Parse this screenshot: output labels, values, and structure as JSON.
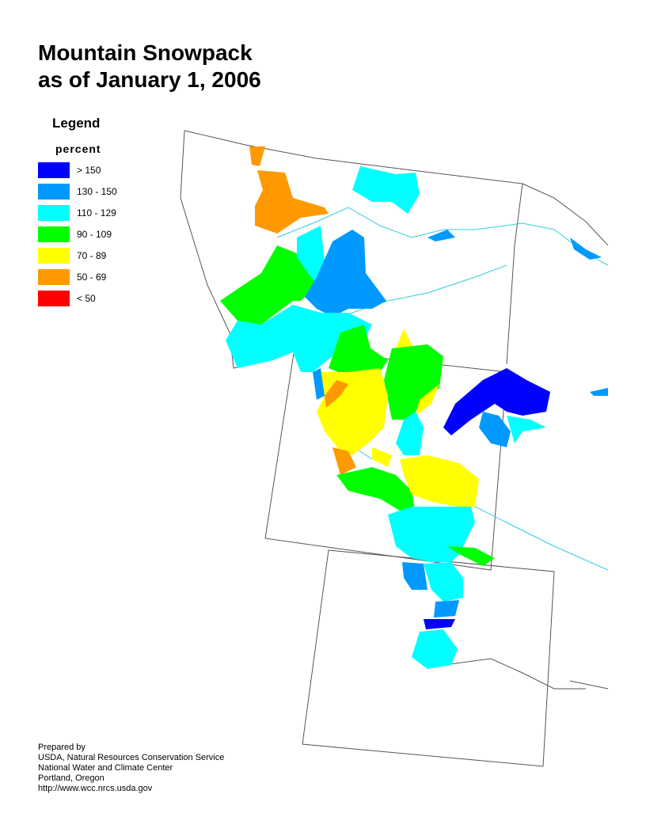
{
  "title_lines": [
    "Mountain Snowpack",
    "as of January 1, 2006"
  ],
  "legend": {
    "title": "Legend",
    "unit": "percent",
    "items": [
      {
        "label": "> 150",
        "color": "#0000ff"
      },
      {
        "label": "130 - 150",
        "color": "#0099ff"
      },
      {
        "label": "110 - 129",
        "color": "#00ffff"
      },
      {
        "label": "90 - 109",
        "color": "#00ff00"
      },
      {
        "label": "70 - 89",
        "color": "#ffff00"
      },
      {
        "label": "50 - 69",
        "color": "#ff9900"
      },
      {
        "label": "< 50",
        "color": "#ff0000"
      }
    ]
  },
  "credits": [
    "Prepared by",
    "USDA, Natural Resources Conservation Service",
    "National Water and Climate Center",
    "Portland, Oregon",
    "http://www.wcc.nrcs.usda.gov"
  ],
  "colors": {
    "river": "#33ccdd",
    "border": "#555555"
  }
}
